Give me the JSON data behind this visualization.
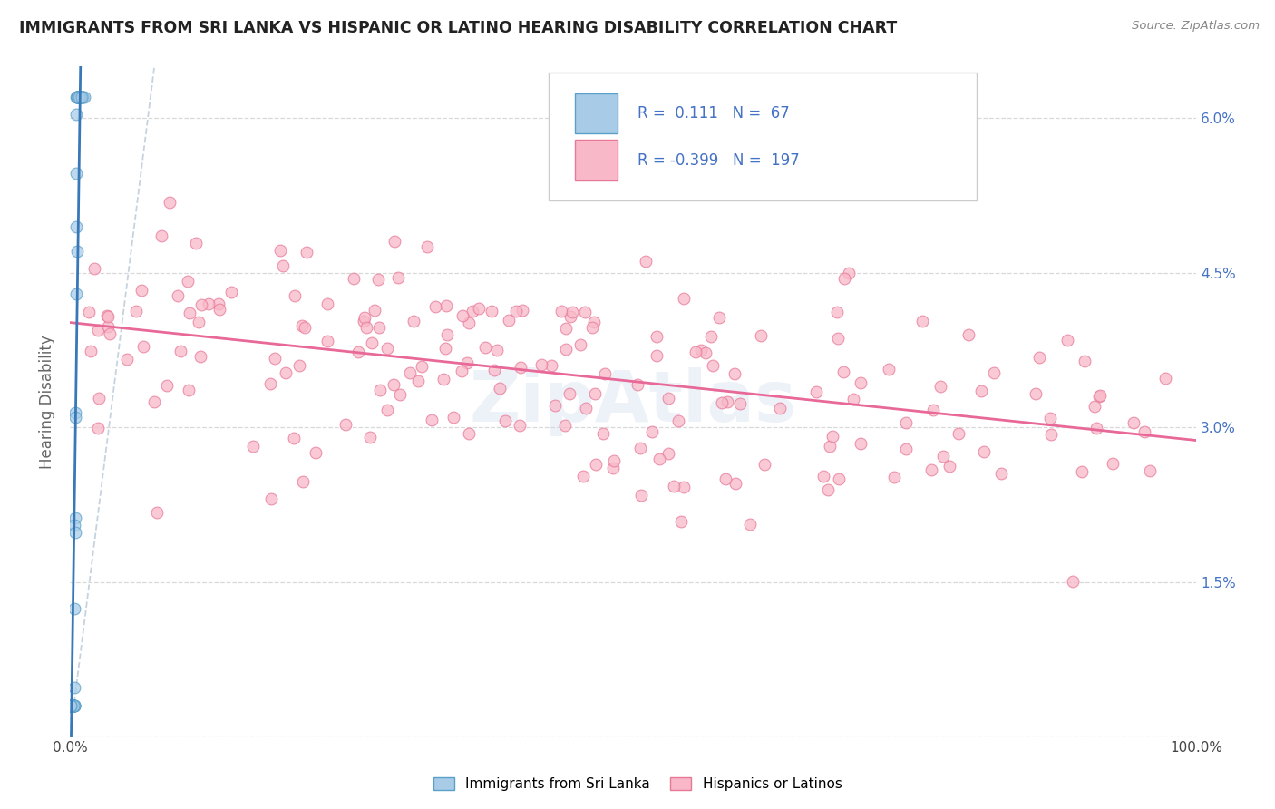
{
  "title": "IMMIGRANTS FROM SRI LANKA VS HISPANIC OR LATINO HEARING DISABILITY CORRELATION CHART",
  "source_text": "Source: ZipAtlas.com",
  "ylabel": "Hearing Disability",
  "r_values": [
    0.111,
    -0.399
  ],
  "n_values": [
    67,
    197
  ],
  "blue_fill": "#a8cce8",
  "blue_edge": "#5a9fc8",
  "pink_fill": "#f8b8c8",
  "pink_edge": "#e87898",
  "blue_line_color": "#3878b8",
  "pink_line_color": "#e86898",
  "ref_line_color": "#b8c8d8",
  "watermark_text": "ZipAtlas",
  "bg_color": "#ffffff",
  "grid_color": "#d8d8d8",
  "right_tick_color": "#4472c4",
  "title_color": "#222222",
  "source_color": "#888888",
  "ylabel_color": "#666666",
  "legend_border_color": "#cccccc",
  "legend_text_color": "#4472c4",
  "bottom_legend_labels": [
    "Immigrants from Sri Lanka",
    "Hispanics or Latinos"
  ]
}
